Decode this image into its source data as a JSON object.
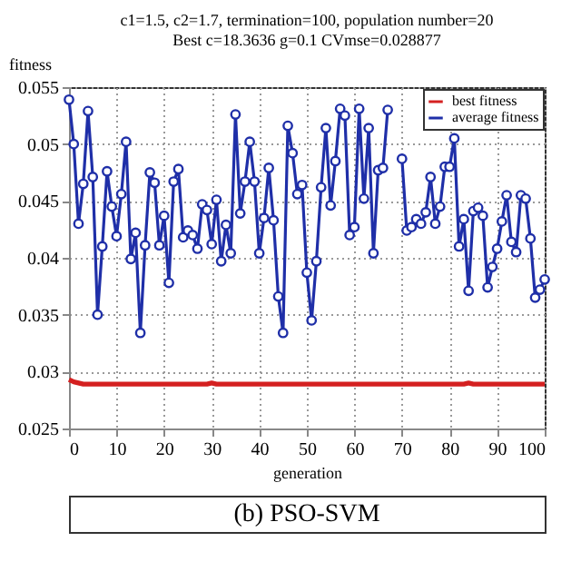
{
  "chart_data": {
    "type": "line",
    "title": [
      "c1=1.5, c2=1.7, termination=100, population number=20",
      "Best c=18.3636   g=0.1   CVmse=0.028877"
    ],
    "xlabel": "generation",
    "ylabel": "fitness",
    "annotations": [
      "(b) PSO-SVM"
    ],
    "x": [
      0,
      1,
      2,
      3,
      4,
      5,
      6,
      7,
      8,
      9,
      10,
      11,
      12,
      13,
      14,
      15,
      16,
      17,
      18,
      19,
      20,
      21,
      22,
      23,
      24,
      25,
      26,
      27,
      28,
      29,
      30,
      31,
      32,
      33,
      34,
      35,
      36,
      37,
      38,
      39,
      40,
      41,
      42,
      43,
      44,
      45,
      46,
      47,
      48,
      49,
      50,
      51,
      52,
      53,
      54,
      55,
      56,
      57,
      58,
      59,
      60,
      61,
      62,
      63,
      64,
      65,
      66,
      67,
      68,
      69,
      70,
      71,
      72,
      73,
      74,
      75,
      76,
      77,
      78,
      79,
      80,
      81,
      82,
      83,
      84,
      85,
      86,
      87,
      88,
      89,
      90,
      91,
      92,
      93,
      94,
      95,
      96,
      97,
      98,
      99,
      100
    ],
    "series": [
      {
        "name": "best fitness",
        "color": "#d42020",
        "marker": "none",
        "values": [
          0.0293,
          0.0291,
          0.029,
          0.0289,
          0.0289,
          0.0289,
          0.0289,
          0.0289,
          0.0289,
          0.0289,
          0.0289,
          0.0289,
          0.0289,
          0.0289,
          0.0289,
          0.0289,
          0.0289,
          0.0289,
          0.0289,
          0.0289,
          0.0289,
          0.0289,
          0.0289,
          0.0289,
          0.0289,
          0.0289,
          0.0289,
          0.0289,
          0.0289,
          0.0289,
          0.029,
          0.0289,
          0.0289,
          0.0289,
          0.0289,
          0.0289,
          0.0289,
          0.0289,
          0.0289,
          0.0289,
          0.0289,
          0.0289,
          0.0289,
          0.0289,
          0.0289,
          0.0289,
          0.0289,
          0.0289,
          0.0289,
          0.0289,
          0.0289,
          0.0289,
          0.0289,
          0.0289,
          0.0289,
          0.0289,
          0.0289,
          0.0289,
          0.0289,
          0.0289,
          0.0289,
          0.0289,
          0.0289,
          0.0289,
          0.0289,
          0.0289,
          0.0289,
          0.0289,
          0.0289,
          0.0289,
          0.0289,
          0.0289,
          0.0289,
          0.0289,
          0.0289,
          0.0289,
          0.0289,
          0.0289,
          0.0289,
          0.0289,
          0.0289,
          0.0289,
          0.0289,
          0.0289,
          0.029,
          0.0289,
          0.0289,
          0.0289,
          0.0289,
          0.0289,
          0.0289,
          0.0289,
          0.0289,
          0.0289,
          0.0289,
          0.0289,
          0.0289,
          0.0289,
          0.0289,
          0.0289,
          0.0289
        ]
      },
      {
        "name": "average fitness",
        "color": "#1f2fa8",
        "marker": "circle",
        "values": [
          0.0539,
          0.05,
          0.043,
          0.0465,
          0.0529,
          0.0471,
          0.035,
          0.041,
          0.0476,
          0.0445,
          0.0419,
          0.0456,
          0.0502,
          0.0399,
          0.0422,
          0.0334,
          0.0411,
          0.0475,
          0.0466,
          0.0411,
          0.0437,
          0.0378,
          0.0467,
          0.0478,
          0.0418,
          0.0424,
          0.042,
          0.0408,
          0.0447,
          0.0442,
          0.0412,
          0.0451,
          0.0397,
          0.0429,
          0.0404,
          0.0526,
          0.0439,
          0.0467,
          0.0502,
          0.0467,
          0.0404,
          0.0435,
          0.0479,
          0.0433,
          0.0366,
          0.0334,
          0.0516,
          0.0492,
          0.0456,
          0.0464,
          0.0387,
          0.0345,
          0.0397,
          0.0462,
          0.0514,
          0.0446,
          0.0485,
          0.0531,
          0.0525,
          0.042,
          0.0427,
          0.0531,
          0.0452,
          0.0514,
          0.0404,
          0.0477,
          0.0479,
          0.053,
          null,
          null,
          0.0487,
          0.0424,
          0.0427,
          0.0434,
          0.043,
          0.044,
          0.0471,
          0.043,
          0.0445,
          0.048,
          0.048,
          0.0505,
          0.041,
          0.0434,
          0.0371,
          0.0441,
          0.0444,
          0.0437,
          0.0374,
          0.0392,
          0.0408,
          0.0432,
          0.0455,
          0.0414,
          0.0405,
          0.0455,
          0.0452,
          0.0417,
          0.0365,
          0.0372,
          0.0381
        ]
      }
    ],
    "xlim": [
      0,
      100
    ],
    "xticks": [
      0,
      10,
      20,
      30,
      40,
      50,
      60,
      70,
      80,
      90,
      100
    ],
    "ylim": [
      0.025,
      0.055
    ],
    "yticks": [
      0.025,
      0.03,
      0.035,
      0.04,
      0.045,
      0.05,
      0.055
    ],
    "grid": true,
    "legend": "top right",
    "line_style": "solid"
  }
}
